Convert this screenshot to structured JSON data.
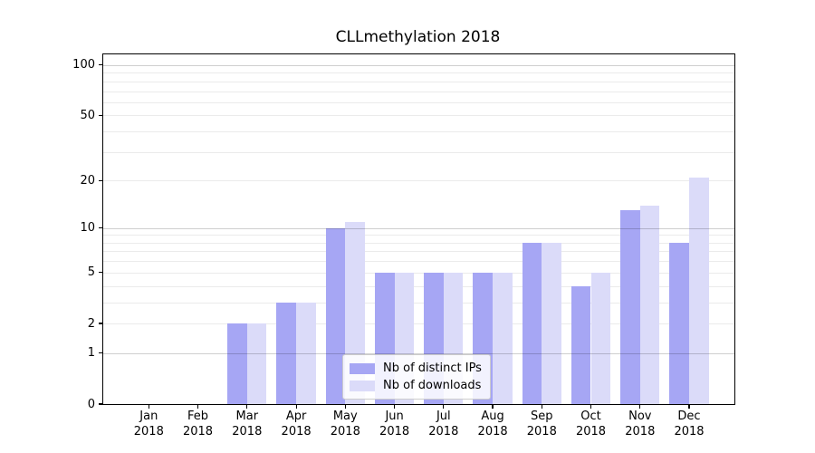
{
  "title": "CLLmethylation 2018",
  "legend": {
    "items": [
      {
        "label": "Nb of distinct IPs",
        "color": "#a6a6f4"
      },
      {
        "label": "Nb of downloads",
        "color": "#dbdbf9"
      }
    ]
  },
  "chart_data": {
    "type": "bar",
    "title": "CLLmethylation 2018",
    "yscale": "log1p",
    "categories": [
      "Jan 2018",
      "Feb 2018",
      "Mar 2018",
      "Apr 2018",
      "May 2018",
      "Jun 2018",
      "Jul 2018",
      "Aug 2018",
      "Sep 2018",
      "Oct 2018",
      "Nov 2018",
      "Dec 2018"
    ],
    "series": [
      {
        "name": "Nb of distinct IPs",
        "color": "#a6a6f4",
        "values": [
          0,
          0,
          2,
          3,
          10,
          5,
          5,
          5,
          8,
          4,
          13,
          8
        ]
      },
      {
        "name": "Nb of downloads",
        "color": "#dbdbf9",
        "values": [
          0,
          0,
          2,
          3,
          11,
          5,
          5,
          5,
          8,
          5,
          14,
          21
        ]
      }
    ],
    "yticks": [
      0,
      1,
      2,
      5,
      10,
      20,
      50,
      100
    ],
    "ylim": [
      0,
      116
    ],
    "grid": {
      "major": [
        1,
        10,
        100
      ],
      "minor": [
        2,
        3,
        4,
        5,
        6,
        7,
        8,
        9,
        20,
        30,
        40,
        50,
        60,
        70,
        80,
        90
      ]
    },
    "legend_position": "inside-bottom-center",
    "colors": {
      "spine": "#000000",
      "major_grid": "#cfcfcf",
      "minor_grid": "#ebebeb",
      "background": "#ffffff"
    }
  }
}
